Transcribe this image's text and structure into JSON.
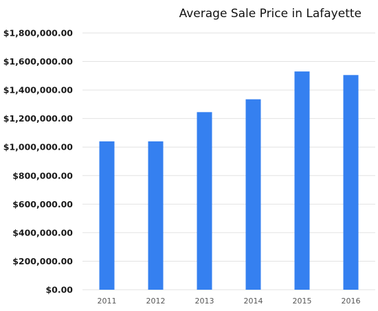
{
  "chart_data": {
    "type": "bar",
    "title": "Average Sale Price in Lafayette",
    "categories": [
      "2011",
      "2012",
      "2013",
      "2014",
      "2015",
      "2016"
    ],
    "values": [
      1040000,
      1040000,
      1245000,
      1335000,
      1530000,
      1505000
    ],
    "xlabel": "",
    "ylabel": "",
    "ylim": [
      0,
      1800000
    ],
    "yticks": [
      0,
      200000,
      400000,
      600000,
      800000,
      1000000,
      1200000,
      1400000,
      1600000,
      1800000
    ],
    "ytick_labels": [
      "$0.00",
      "$200,000.00",
      "$400,000.00",
      "$600,000.00",
      "$800,000.00",
      "$1,000,000.00",
      "$1,200,000.00",
      "$1,400,000.00",
      "$1,600,000.00",
      "$1,800,000.00"
    ],
    "grid": true,
    "legend": "none",
    "bar_color": "#3580F0",
    "grid_color": "#E2E2E2"
  }
}
